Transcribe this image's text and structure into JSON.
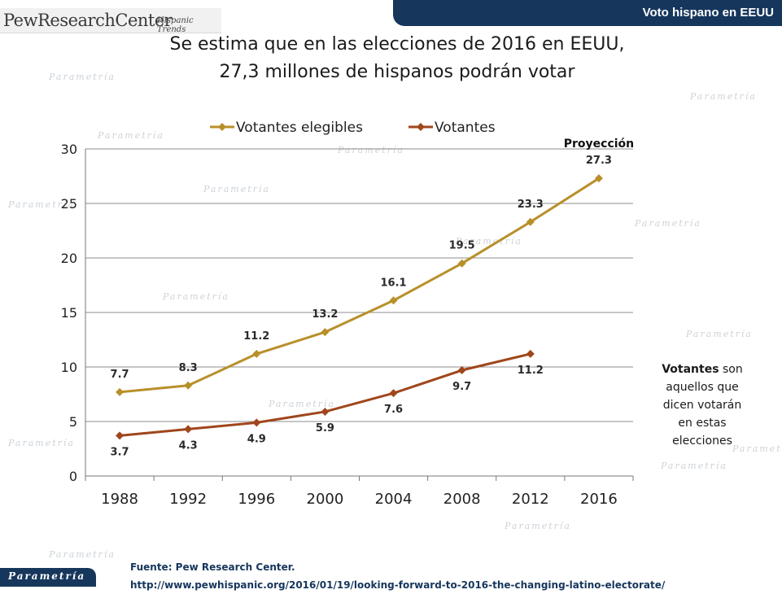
{
  "header": {
    "logo_main": "PewResearchCenter",
    "logo_sub": "Hispanic Trends",
    "section_title": "Voto hispano en EEUU"
  },
  "title": {
    "line1": "Se estima que en las elecciones de 2016 en EEUU,",
    "line2": "27,3 millones de hispanos podrán votar"
  },
  "side_note": {
    "bold": "Votantes",
    "rest": " son aquellos que dicen votarán en estas elecciones"
  },
  "source": {
    "line1": "Fuente: Pew Research Center.",
    "line2": "http://www.pewhispanic.org/2016/01/19/looking-forward-to-2016-the-changing-latino-electorate/"
  },
  "footer": {
    "brand": "Parametría"
  },
  "watermark": {
    "text": "Parametría"
  },
  "chart_data": {
    "type": "line",
    "title": "Se estima que en las elecciones de 2016 en EEUU, 27,3 millones de hispanos podrán votar",
    "xlabel": "",
    "ylabel": "",
    "categories": [
      "1988",
      "1992",
      "1996",
      "2000",
      "2004",
      "2008",
      "2012",
      "2016"
    ],
    "ylim": [
      0,
      30
    ],
    "yticks": [
      0,
      5,
      10,
      15,
      20,
      25,
      30
    ],
    "grid": true,
    "legend_position": "top",
    "annotation": "Proyección",
    "series": [
      {
        "name": "Votantes elegibles",
        "color": "#b8902a",
        "values": [
          7.7,
          8.3,
          11.2,
          13.2,
          16.1,
          19.5,
          23.3,
          27.3
        ],
        "labels": [
          "7.7",
          "8.3",
          "11.2",
          "13.2",
          "16.1",
          "19.5",
          "23.3",
          "27.3"
        ]
      },
      {
        "name": "Votantes",
        "color": "#a0461c",
        "values": [
          3.7,
          4.3,
          4.9,
          5.9,
          7.6,
          9.7,
          11.2,
          null
        ],
        "labels": [
          "3.7",
          "4.3",
          "4.9",
          "5.9",
          "7.6",
          "9.7",
          "11.2",
          null
        ]
      }
    ]
  }
}
